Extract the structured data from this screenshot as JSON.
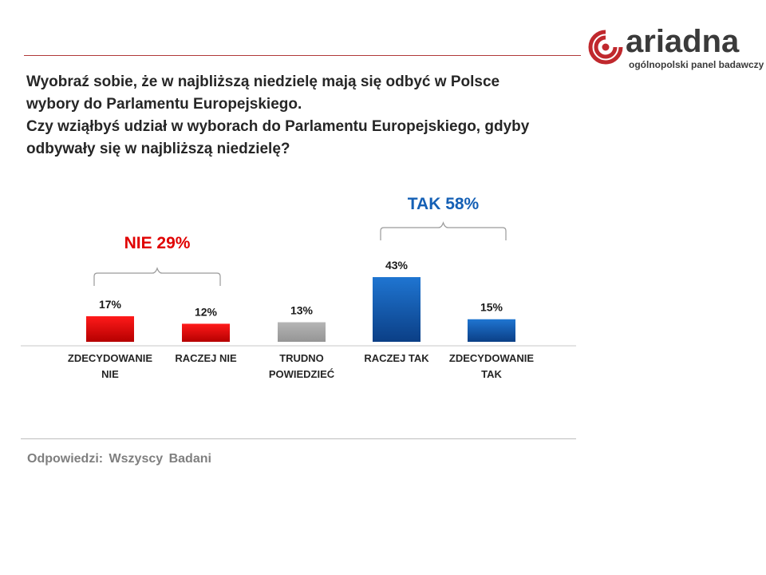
{
  "logo": {
    "name": "ariadna",
    "tagline": "ogólnopolski panel badawczy",
    "brand_color": "#c0282d"
  },
  "question": {
    "lines": [
      "Wyobraź sobie, że w najbliższą niedzielę mają się odbyć w Polsce",
      "wybory do Parlamentu Europejskiego.",
      "Czy wziąłbyś udział w wyborach do Parlamentu Europejskiego, gdyby",
      "odbywały się w najbliższą niedzielę?"
    ]
  },
  "chart_data": {
    "type": "bar",
    "categories": [
      [
        "ZDECYDOWANIE",
        "NIE"
      ],
      [
        "RACZEJ NIE"
      ],
      [
        "TRUDNO",
        "POWIEDZIEĆ"
      ],
      [
        "RACZEJ TAK"
      ],
      [
        "ZDECYDOWANIE",
        "TAK"
      ]
    ],
    "values": [
      17,
      12,
      13,
      43,
      15
    ],
    "value_labels": [
      "17%",
      "12%",
      "13%",
      "43%",
      "15%"
    ],
    "colors": [
      "#e00000",
      "#e00000",
      "#a6a6a6",
      "#1560b5",
      "#1560b5"
    ],
    "ylim": [
      0,
      50
    ],
    "grid": false,
    "groups": [
      {
        "label": "NIE 29%",
        "from": 0,
        "to": 1,
        "color": "#e00000"
      },
      {
        "label": "TAK 58%",
        "from": 3,
        "to": 4,
        "color": "#1560b5"
      }
    ]
  },
  "footer": {
    "text": "Odpowiedzi: Wszyscy Badani"
  }
}
